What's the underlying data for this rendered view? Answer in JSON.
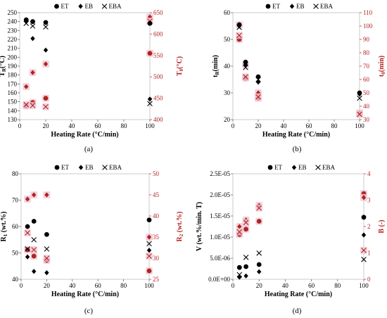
{
  "colors": {
    "black": "#000000",
    "red": "#b22222",
    "shadow": "#f0c8d4"
  },
  "legend": {
    "et": "ET",
    "eb": "EB",
    "eba": "EBA"
  },
  "chart_data": [
    {
      "type": "scatter",
      "panel_label": "(a)",
      "xlabel": "Heating Rate (°C/min)",
      "ylabel_left_main": "T",
      "ylabel_left_sub": "R",
      "ylabel_left_unit": "(°C)",
      "ylabel_right_main": "T",
      "ylabel_right_sub": "0",
      "ylabel_right_unit": "(°C)",
      "xlim": [
        0,
        100
      ],
      "ylim_left": [
        130,
        250
      ],
      "ylim_right": [
        400,
        650
      ],
      "xticks": [
        "0",
        "20",
        "40",
        "60",
        "80",
        "100"
      ],
      "yticks_left": [
        "130",
        "140",
        "150",
        "160",
        "170",
        "180",
        "190",
        "200",
        "210",
        "220",
        "230",
        "240",
        "250"
      ],
      "yticks_right": [
        "400",
        "450",
        "500",
        "550",
        "600",
        "650"
      ],
      "series_left": [
        {
          "name": "ET",
          "marker": "circle",
          "points": [
            [
              5,
              242
            ],
            [
              10,
              240
            ],
            [
              20,
              239
            ],
            [
              100,
              238
            ]
          ]
        },
        {
          "name": "EB",
          "marker": "diamond",
          "points": [
            [
              5,
              240
            ],
            [
              10,
              221
            ],
            [
              20,
              208
            ],
            [
              100,
              153
            ]
          ]
        },
        {
          "name": "EBA",
          "marker": "x",
          "points": [
            [
              5,
              238
            ],
            [
              10,
              235
            ],
            [
              20,
              234
            ],
            [
              100,
              148
            ]
          ]
        }
      ],
      "series_right": [
        {
          "name": "ET",
          "marker": "circle",
          "points": [
            [
              5,
              432
            ],
            [
              10,
              440
            ],
            [
              20,
              450
            ],
            [
              100,
              555
            ]
          ]
        },
        {
          "name": "EB",
          "marker": "diamond",
          "points": [
            [
              5,
              477
            ],
            [
              10,
              510
            ],
            [
              20,
              530
            ],
            [
              100,
              640
            ]
          ]
        },
        {
          "name": "EBA",
          "marker": "x",
          "points": [
            [
              5,
              435
            ],
            [
              10,
              433
            ],
            [
              20,
              430
            ],
            [
              100,
              630
            ]
          ]
        }
      ]
    },
    {
      "type": "scatter",
      "panel_label": "(b)",
      "xlabel": "Heating Rate (°C/min)",
      "ylabel_left_main": "t",
      "ylabel_left_sub": "R",
      "ylabel_left_unit": "(min)",
      "ylabel_right_main": "t",
      "ylabel_right_sub": "0",
      "ylabel_right_unit": "(min)",
      "xlim": [
        0,
        100
      ],
      "ylim_left": [
        20,
        60
      ],
      "ylim_right": [
        30,
        110
      ],
      "xticks": [
        "0",
        "20",
        "40",
        "60",
        "80",
        "100"
      ],
      "yticks_left": [
        "20",
        "30",
        "40",
        "50",
        "60"
      ],
      "yticks_right": [
        "30",
        "40",
        "50",
        "60",
        "70",
        "80",
        "90",
        "100",
        "110"
      ],
      "series_left": [
        {
          "name": "ET",
          "marker": "circle",
          "points": [
            [
              5,
              55.5
            ],
            [
              10,
              41.5
            ],
            [
              20,
              36
            ],
            [
              100,
              30
            ]
          ]
        },
        {
          "name": "EB",
          "marker": "diamond",
          "points": [
            [
              5,
              55
            ],
            [
              10,
              40.5
            ],
            [
              20,
              34
            ],
            [
              100,
              29.5
            ]
          ]
        },
        {
          "name": "EBA",
          "marker": "x",
          "points": [
            [
              5,
              54.5
            ],
            [
              10,
              39.5
            ],
            [
              20,
              35
            ],
            [
              100,
              28
            ]
          ]
        }
      ],
      "series_right": [
        {
          "name": "ET",
          "marker": "circle",
          "points": [
            [
              5,
              90
            ],
            [
              10,
              61
            ],
            [
              20,
              46
            ],
            [
              100,
              34
            ]
          ]
        },
        {
          "name": "EB",
          "marker": "diamond",
          "points": [
            [
              5,
              101
            ],
            [
              10,
              71
            ],
            [
              20,
              50
            ],
            [
              100,
              35
            ]
          ]
        },
        {
          "name": "EBA",
          "marker": "x",
          "points": [
            [
              5,
              93
            ],
            [
              10,
              62
            ],
            [
              20,
              47
            ],
            [
              100,
              34
            ]
          ]
        }
      ]
    },
    {
      "type": "scatter",
      "panel_label": "(c)",
      "xlabel": "Heating Rate (°C/min)",
      "ylabel_left_main": "R",
      "ylabel_left_sub": "1",
      "ylabel_left_unit": " (wt.%)",
      "ylabel_right_main": "R",
      "ylabel_right_sub": "2",
      "ylabel_right_unit": " (wt.%)",
      "xlim": [
        0,
        100
      ],
      "ylim_left": [
        40,
        80
      ],
      "ylim_right": [
        25,
        50
      ],
      "xticks": [
        "0",
        "20",
        "40",
        "60",
        "80",
        "100"
      ],
      "yticks_left": [
        "40",
        "50",
        "60",
        "70",
        "80"
      ],
      "yticks_right": [
        "25",
        "30",
        "35",
        "40",
        "45",
        "50"
      ],
      "series_left": [
        {
          "name": "ET",
          "marker": "circle",
          "points": [
            [
              5,
              60
            ],
            [
              10,
              62
            ],
            [
              20,
              57
            ],
            [
              100,
              62.5
            ]
          ]
        },
        {
          "name": "EB",
          "marker": "diamond",
          "points": [
            [
              5,
              48.5
            ],
            [
              10,
              43
            ],
            [
              20,
              42.5
            ],
            [
              100,
              51
            ]
          ]
        },
        {
          "name": "EBA",
          "marker": "x",
          "points": [
            [
              5,
              51.5
            ],
            [
              10,
              55
            ],
            [
              20,
              51.5
            ],
            [
              100,
              53.5
            ]
          ]
        }
      ],
      "series_right": [
        {
          "name": "ET",
          "marker": "circle",
          "points": [
            [
              5,
              32
            ],
            [
              10,
              30.5
            ],
            [
              20,
              29.5
            ],
            [
              100,
              27
            ]
          ]
        },
        {
          "name": "EB",
          "marker": "diamond",
          "points": [
            [
              5,
              44
            ],
            [
              10,
              45
            ],
            [
              20,
              45
            ],
            [
              100,
              35
            ]
          ]
        },
        {
          "name": "EBA",
          "marker": "x",
          "points": [
            [
              5,
              36
            ],
            [
              10,
              32
            ],
            [
              20,
              30
            ],
            [
              100,
              30.5
            ]
          ]
        }
      ]
    },
    {
      "type": "scatter",
      "panel_label": "(d)",
      "xlabel": "Heating Rate (°C/min)",
      "ylabel_left_main": "V",
      "ylabel_left_sub": "",
      "ylabel_left_unit": " (wt.%/min. T)",
      "ylabel_right_main": "B",
      "ylabel_right_sub": "",
      "ylabel_right_unit": " (-)",
      "xlim": [
        0,
        100
      ],
      "ylim_left": [
        0,
        2.5e-05
      ],
      "ylim_right": [
        0,
        4
      ],
      "xticks": [
        "0",
        "20",
        "40",
        "60",
        "80",
        "100"
      ],
      "yticks_left": [
        "0.0E+00",
        "5.0E-06",
        "1.0E-05",
        "1.5E-05",
        "2.0E-05",
        "2.5E-05"
      ],
      "yticks_right": [
        "0",
        "1",
        "2",
        "3",
        "4"
      ],
      "series_left": [
        {
          "name": "ET",
          "marker": "circle",
          "points": [
            [
              5,
              2.8e-06
            ],
            [
              10,
              3e-06
            ],
            [
              20,
              3.5e-06
            ],
            [
              100,
              1.47e-05
            ]
          ]
        },
        {
          "name": "EB",
          "marker": "diamond",
          "points": [
            [
              5,
              5e-07
            ],
            [
              10,
              8e-07
            ],
            [
              20,
              1.8e-06
            ],
            [
              100,
              1.05e-05
            ]
          ]
        },
        {
          "name": "EBA",
          "marker": "x",
          "points": [
            [
              5,
              1.1e-06
            ],
            [
              10,
              5.2e-06
            ],
            [
              20,
              6.2e-06
            ],
            [
              100,
              4.7e-06
            ]
          ]
        }
      ],
      "series_right": [
        {
          "name": "ET",
          "marker": "circle",
          "points": [
            [
              5,
              1.7
            ],
            [
              10,
              1.9
            ],
            [
              20,
              2.2
            ],
            [
              100,
              3.25
            ]
          ]
        },
        {
          "name": "EB",
          "marker": "diamond",
          "points": [
            [
              5,
              2.0
            ],
            [
              10,
              2.25
            ],
            [
              20,
              2.8
            ],
            [
              100,
              3.1
            ]
          ]
        },
        {
          "name": "EBA",
          "marker": "x",
          "points": [
            [
              5,
              1.8
            ],
            [
              10,
              2.15
            ],
            [
              20,
              2.7
            ],
            [
              100,
              1.1
            ]
          ]
        }
      ]
    }
  ]
}
